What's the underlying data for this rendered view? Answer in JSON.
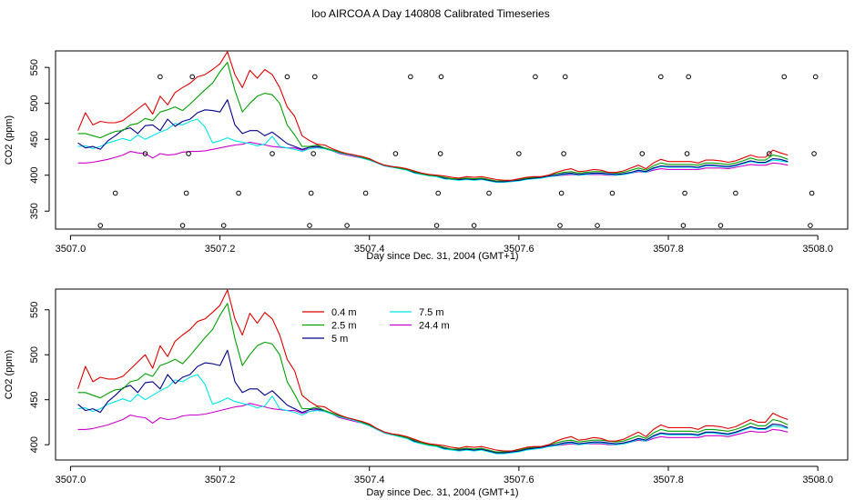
{
  "figure": {
    "title": "loo AIRCOA A  Day 140808  Calibrated Timeseries"
  },
  "chart_data": [
    {
      "type": "line",
      "xlabel": "Day since Dec. 31, 2004 (GMT+1)",
      "ylabel": "CO2 (ppm)",
      "xlim": [
        3506.98,
        3508.04
      ],
      "ylim": [
        325,
        573
      ],
      "xticks": [
        "3507.0",
        "3507.2",
        "3507.4",
        "3507.6",
        "3507.8",
        "3508.0"
      ],
      "yticks": [
        "350",
        "400",
        "450",
        "500",
        "550"
      ],
      "legend": "none",
      "series": [
        {
          "color": "#DF0000"
        },
        {
          "color": "#00A000"
        },
        {
          "color": "#00008B"
        },
        {
          "color": "#00E5E5"
        },
        {
          "color": "#CC00CC"
        }
      ],
      "points": {
        "type": "scatter",
        "marker": "open-circle",
        "x": [
          3507.04,
          3507.06,
          3507.1,
          3507.12,
          3507.15,
          3507.155,
          3507.158,
          3507.163,
          3507.205,
          3507.225,
          3507.27,
          3507.29,
          3507.32,
          3507.322,
          3507.325,
          3507.327,
          3507.37,
          3507.395,
          3507.435,
          3507.455,
          3507.49,
          3507.492,
          3507.495,
          3507.496,
          3507.54,
          3507.56,
          3507.6,
          3507.622,
          3507.655,
          3507.657,
          3507.66,
          3507.662,
          3507.705,
          3507.725,
          3507.765,
          3507.79,
          3507.82,
          3507.822,
          3507.825,
          3507.827,
          3507.87,
          3507.89,
          3507.935,
          3507.955,
          3507.99,
          3507.992,
          3507.995,
          3507.997
        ],
        "y": [
          330,
          375,
          430,
          537,
          330,
          375,
          430,
          537,
          330,
          375,
          430,
          537,
          330,
          375,
          430,
          537,
          330,
          375,
          430,
          537,
          330,
          375,
          430,
          537,
          330,
          375,
          430,
          537,
          330,
          375,
          430,
          537,
          330,
          375,
          430,
          537,
          330,
          375,
          430,
          537,
          330,
          375,
          430,
          537,
          330,
          375,
          430,
          537
        ]
      }
    },
    {
      "type": "line",
      "xlabel": "Day since Dec. 31, 2004 (GMT+1)",
      "ylabel": "CO2 (ppm)",
      "xlim": [
        3506.98,
        3508.04
      ],
      "ylim": [
        383,
        573
      ],
      "xticks": [
        "3507.0",
        "3507.2",
        "3507.4",
        "3507.6",
        "3507.8",
        "3508.0"
      ],
      "yticks": [
        "400",
        "450",
        "500",
        "550"
      ],
      "legend": "top-center",
      "series": [
        {
          "name": "0.4 m",
          "color": "#DF0000"
        },
        {
          "name": "2.5 m",
          "color": "#00A000"
        },
        {
          "name": "5 m",
          "color": "#00008B"
        },
        {
          "name": "7.5 m",
          "color": "#00E5E5"
        },
        {
          "name": "24.4 m",
          "color": "#CC00CC"
        }
      ]
    }
  ],
  "series_values": {
    "x_start": 3507.01,
    "x_step": 0.01,
    "s0": [
      462,
      487,
      470,
      475,
      473,
      473,
      476,
      484,
      492,
      500,
      485,
      510,
      498,
      515,
      522,
      528,
      537,
      540,
      547,
      555,
      572,
      540,
      522,
      546,
      535,
      547,
      540,
      522,
      495,
      482,
      455,
      448,
      443,
      442,
      437,
      433,
      430,
      428,
      426,
      423,
      418,
      414,
      412,
      411,
      409,
      406,
      403,
      401,
      400,
      399,
      397,
      396,
      398,
      397,
      398,
      396,
      394,
      393,
      393,
      395,
      397,
      398,
      398,
      400,
      404,
      407,
      409,
      405,
      406,
      408,
      407,
      404,
      404,
      406,
      410,
      414,
      409,
      417,
      422,
      419,
      419,
      419,
      419,
      417,
      421,
      421,
      420,
      418,
      420,
      424,
      428,
      425,
      425,
      435,
      431,
      428
    ],
    "s1": [
      458,
      458,
      455,
      452,
      457,
      461,
      462,
      470,
      472,
      479,
      476,
      488,
      491,
      495,
      490,
      499,
      509,
      519,
      528,
      544,
      557,
      518,
      488,
      500,
      510,
      514,
      512,
      500,
      470,
      456,
      440,
      440,
      442,
      438,
      435,
      432,
      430,
      428,
      425,
      422,
      418,
      414,
      412,
      410,
      408,
      405,
      402,
      400,
      399,
      397,
      395,
      395,
      396,
      395,
      396,
      394,
      392,
      392,
      393,
      394,
      396,
      397,
      398,
      400,
      402,
      404,
      405,
      403,
      404,
      405,
      405,
      404,
      403,
      404,
      407,
      410,
      407,
      413,
      417,
      415,
      415,
      415,
      415,
      414,
      417,
      417,
      416,
      415,
      417,
      420,
      424,
      421,
      421,
      428,
      426,
      422
    ],
    "s2": [
      445,
      438,
      440,
      436,
      448,
      455,
      463,
      466,
      458,
      469,
      470,
      462,
      478,
      468,
      475,
      478,
      487,
      491,
      490,
      488,
      505,
      470,
      458,
      462,
      462,
      455,
      460,
      452,
      444,
      440,
      436,
      439,
      440,
      438,
      435,
      432,
      430,
      428,
      425,
      422,
      418,
      414,
      412,
      410,
      408,
      404,
      402,
      400,
      399,
      396,
      395,
      394,
      395,
      394,
      395,
      393,
      391,
      391,
      392,
      393,
      395,
      396,
      397,
      399,
      400,
      402,
      403,
      401,
      402,
      403,
      403,
      402,
      401,
      402,
      404,
      407,
      405,
      410,
      413,
      412,
      412,
      412,
      412,
      411,
      414,
      414,
      413,
      412,
      414,
      417,
      420,
      418,
      418,
      423,
      422,
      419
    ],
    "s3": [
      440,
      441,
      437,
      440,
      445,
      448,
      451,
      448,
      456,
      450,
      455,
      460,
      464,
      472,
      470,
      475,
      478,
      467,
      445,
      448,
      452,
      448,
      446,
      444,
      441,
      443,
      454,
      440,
      438,
      436,
      433,
      437,
      438,
      437,
      434,
      431,
      429,
      427,
      424,
      421,
      417,
      413,
      411,
      409,
      407,
      403,
      401,
      399,
      398,
      395,
      394,
      393,
      394,
      393,
      394,
      392,
      390,
      390,
      391,
      392,
      394,
      395,
      396,
      398,
      399,
      401,
      402,
      400,
      401,
      402,
      402,
      401,
      400,
      401,
      403,
      406,
      404,
      409,
      412,
      411,
      411,
      411,
      411,
      410,
      413,
      413,
      412,
      411,
      413,
      416,
      419,
      417,
      417,
      421,
      420,
      418
    ],
    "s4": [
      417,
      417,
      418,
      420,
      422,
      425,
      428,
      433,
      431,
      430,
      424,
      430,
      428,
      429,
      432,
      433,
      433,
      434,
      436,
      438,
      440,
      442,
      443,
      446,
      444,
      442,
      440,
      439,
      438,
      438,
      435,
      437,
      439,
      437,
      434,
      430,
      428,
      426,
      424,
      421,
      417,
      413,
      411,
      410,
      408,
      405,
      402,
      400,
      399,
      397,
      395,
      394,
      395,
      394,
      395,
      393,
      391,
      391,
      392,
      393,
      395,
      396,
      397,
      398,
      399,
      400,
      401,
      400,
      401,
      401,
      401,
      400,
      400,
      401,
      403,
      405,
      404,
      407,
      409,
      408,
      408,
      408,
      408,
      408,
      410,
      410,
      410,
      409,
      411,
      413,
      415,
      414,
      414,
      417,
      416,
      414
    ]
  }
}
